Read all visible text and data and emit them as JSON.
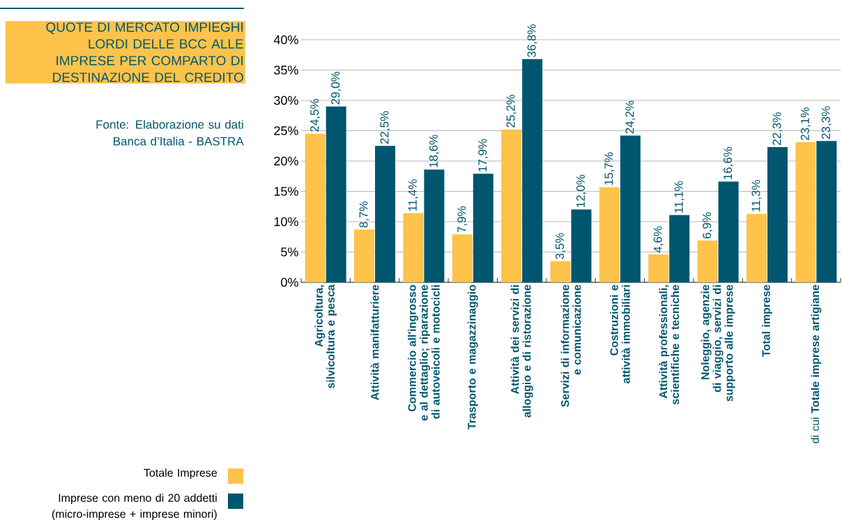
{
  "chart_data": {
    "type": "bar",
    "title": "QUOTE DI MERCATO IMPIEGHI LORDI DELLE BCC ALLE IMPRESE PER COMPARTO DI DESTINAZIONE DEL CREDITO",
    "annotations": [
      "Fonte: Elaborazione su dati Banca d’Italia - BASTRA"
    ],
    "categories": [
      "Agricoltura, silvicoltura e pesca",
      "Attività manifatturiere",
      "Commercio all'ingrosso e al dettaglio; riparazione di autoveicoli e motocicli",
      "Trasporto e magazzinaggio",
      "Attività dei servizi di alloggio e di ristorazione",
      "Servizi di informazione e comunicazione",
      "Costruzioni e attività immobiliari",
      "Attività professionali, scientifiche e tecniche",
      "Noleggio, agenzie di viaggio, servizi di supporto alle imprese",
      "Total imprese",
      "di cui **Totale imprese artigiane**"
    ],
    "series": [
      {
        "name": "Totale Imprese",
        "color": "#fdc34b",
        "values": [
          24.5,
          8.7,
          11.4,
          7.9,
          25.2,
          3.5,
          15.7,
          4.6,
          6.9,
          11.3,
          23.1
        ],
        "value_labels": [
          "24,5%",
          "8,7%",
          "11,4%",
          "7,9%",
          "25,2%",
          "3,5%",
          "15,7%",
          "4,6%",
          "6,9%",
          "11,3%",
          "23,1%"
        ]
      },
      {
        "name": "Imprese con meno di 20 addetti (micro-imprese + imprese minori)",
        "color": "#00566f",
        "values": [
          29.0,
          22.5,
          18.6,
          17.9,
          36.8,
          12.0,
          24.2,
          11.1,
          16.6,
          22.3,
          23.3
        ],
        "value_labels": [
          "29,0%",
          "22,5%",
          "18,6%",
          "17,9%",
          "36,8%",
          "12,0%",
          "24,2%",
          "11,1%",
          "16,6%",
          "22,3%",
          "23,3%"
        ]
      }
    ],
    "ylim": [
      0,
      40
    ],
    "yticks": [
      {
        "value": 0,
        "label": "0%"
      },
      {
        "value": 5,
        "label": "5%"
      },
      {
        "value": 10,
        "label": "10%"
      },
      {
        "value": 15,
        "label": "15%"
      },
      {
        "value": 20,
        "label": "20%"
      },
      {
        "value": 25,
        "label": "25%"
      },
      {
        "value": 30,
        "label": "30%"
      },
      {
        "value": 35,
        "label": "35%"
      },
      {
        "value": 40,
        "label": "40%"
      }
    ],
    "grid": "y",
    "legend": "bottom left"
  }
}
